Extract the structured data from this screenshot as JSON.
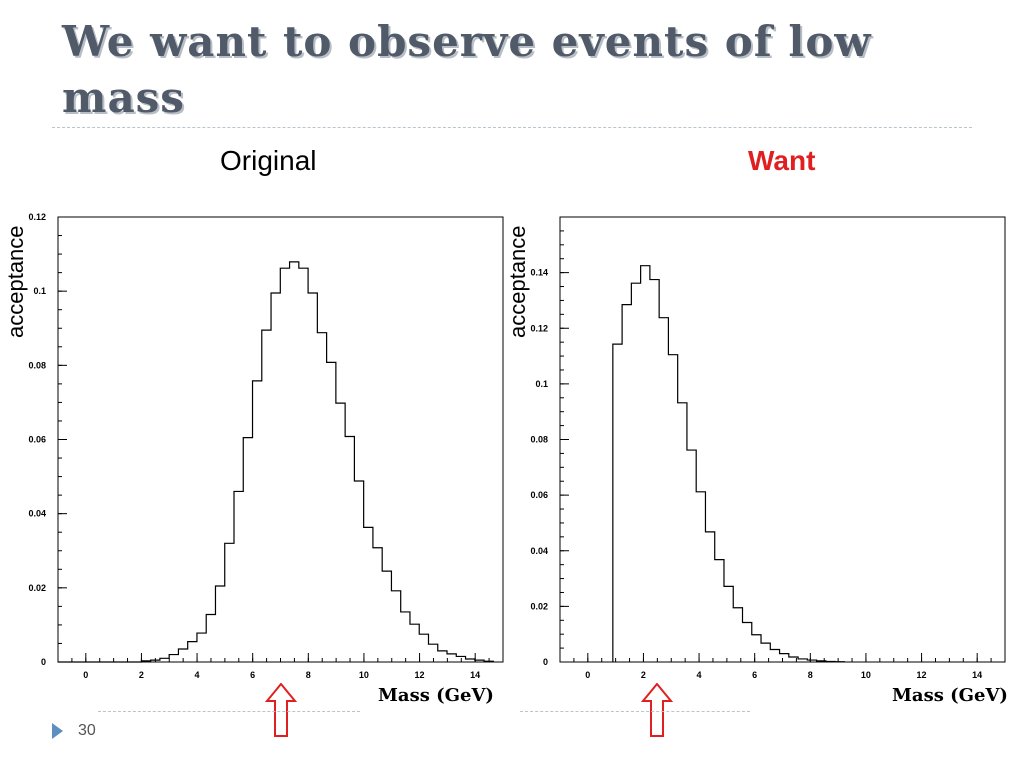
{
  "slide": {
    "title": "We want to observe events of low mass",
    "page_number": "30"
  },
  "colors": {
    "title": "#505a68",
    "want": "#e02020",
    "arrow": "#e02020",
    "hist": "#000000"
  },
  "chart_data": [
    {
      "type": "histogram",
      "title": "Original",
      "xlabel": "Mass (GeV)",
      "ylabel": "acceptance",
      "xlim": [
        -1,
        15
      ],
      "ylim": [
        0,
        0.12
      ],
      "xticks": [
        "0",
        "2",
        "4",
        "6",
        "8",
        "10",
        "12",
        "14"
      ],
      "yticks": [
        "0",
        "0.02",
        "0.04",
        "0.06",
        "0.08",
        "0.1",
        "0.12"
      ],
      "bin_width": 0.333,
      "bin_start": 0.0,
      "values": [
        0,
        0,
        0,
        0,
        0,
        0,
        0.0003,
        0.0005,
        0.001,
        0.002,
        0.0035,
        0.0055,
        0.0078,
        0.0128,
        0.0205,
        0.032,
        0.046,
        0.0605,
        0.0758,
        0.0895,
        0.0995,
        0.1062,
        0.1079,
        0.1062,
        0.0995,
        0.0888,
        0.0808,
        0.0698,
        0.0608,
        0.0488,
        0.0363,
        0.0308,
        0.0245,
        0.0192,
        0.0135,
        0.0102,
        0.0075,
        0.0048,
        0.003,
        0.0022,
        0.0015,
        0.0008,
        0.0005,
        0.0002
      ],
      "arrow_at": 7.0
    },
    {
      "type": "histogram",
      "title": "Want",
      "xlabel": "Mass (GeV)",
      "ylabel": "acceptance",
      "xlim": [
        -1,
        15
      ],
      "ylim": [
        0,
        0.16
      ],
      "xticks": [
        "0",
        "2",
        "4",
        "6",
        "8",
        "10",
        "12",
        "14"
      ],
      "yticks": [
        "0",
        "0.02",
        "0.04",
        "0.06",
        "0.08",
        "0.1",
        "0.12",
        "0.14"
      ],
      "bin_width": 0.333,
      "bin_start": 0.9,
      "values": [
        0.1143,
        0.1285,
        0.1362,
        0.1425,
        0.1375,
        0.1238,
        0.1105,
        0.0932,
        0.0762,
        0.0612,
        0.0468,
        0.0368,
        0.0272,
        0.0195,
        0.0142,
        0.0098,
        0.0068,
        0.0045,
        0.003,
        0.0018,
        0.0011,
        0.0007,
        0.0004,
        0.0002,
        0.0001
      ],
      "arrow_at": 2.5
    }
  ]
}
